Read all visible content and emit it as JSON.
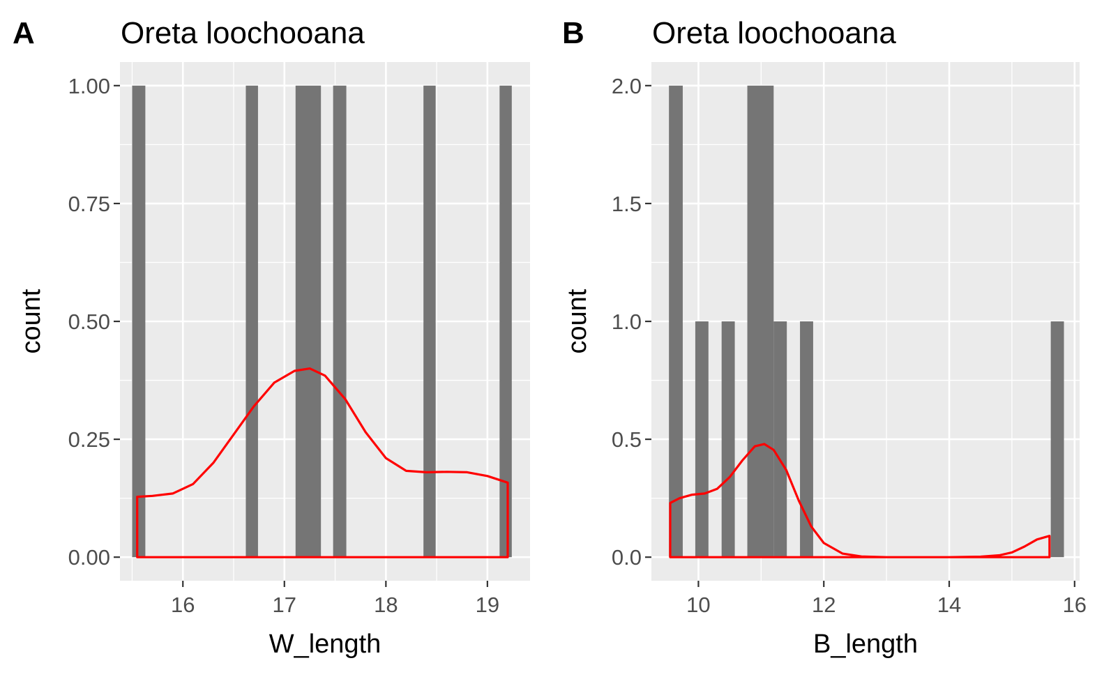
{
  "chart_data": [
    {
      "tag": "A",
      "type": "bar",
      "subtype": "histogram-with-density",
      "title": "Oreta loochooana",
      "xlabel": "W_length",
      "ylabel": "count",
      "xlim": [
        15.38,
        19.42
      ],
      "ylim": [
        -0.05,
        1.05
      ],
      "x_ticks": [
        16,
        17,
        18,
        19
      ],
      "x_tick_labels": [
        "16",
        "17",
        "18",
        "19"
      ],
      "y_ticks": [
        0,
        0.25,
        0.5,
        0.75,
        1.0
      ],
      "y_tick_labels": [
        "0.00",
        "0.25",
        "0.50",
        "0.75",
        "1.00"
      ],
      "bars": [
        {
          "x0": 15.5,
          "x1": 15.63,
          "count": 1
        },
        {
          "x0": 16.62,
          "x1": 16.74,
          "count": 1
        },
        {
          "x0": 17.11,
          "x1": 17.36,
          "count": 1
        },
        {
          "x0": 17.48,
          "x1": 17.61,
          "count": 1
        },
        {
          "x0": 18.37,
          "x1": 18.49,
          "count": 1
        },
        {
          "x0": 19.12,
          "x1": 19.24,
          "count": 1
        }
      ],
      "density": {
        "color": "#ff0000",
        "x": [
          15.55,
          15.7,
          15.9,
          16.1,
          16.3,
          16.5,
          16.7,
          16.9,
          17.1,
          17.25,
          17.4,
          17.6,
          17.8,
          18.0,
          18.2,
          18.4,
          18.6,
          18.8,
          19.0,
          19.2
        ],
        "y": [
          0.128,
          0.13,
          0.135,
          0.155,
          0.2,
          0.26,
          0.32,
          0.37,
          0.395,
          0.4,
          0.385,
          0.335,
          0.265,
          0.21,
          0.183,
          0.18,
          0.181,
          0.18,
          0.172,
          0.158
        ]
      },
      "bar_color": "#757575",
      "panel_background": "#ebebeb",
      "grid": true,
      "legend": "none"
    },
    {
      "tag": "B",
      "type": "bar",
      "subtype": "histogram-with-density",
      "title": "Oreta loochooana",
      "xlabel": "B_length",
      "ylabel": "count",
      "xlim": [
        9.25,
        16.08
      ],
      "ylim": [
        -0.1,
        2.1
      ],
      "x_ticks": [
        10,
        12,
        14,
        16
      ],
      "x_tick_labels": [
        "10",
        "12",
        "14",
        "16"
      ],
      "y_ticks": [
        0,
        0.5,
        1.0,
        1.5,
        2.0
      ],
      "y_tick_labels": [
        "0.0",
        "0.5",
        "1.0",
        "1.5",
        "2.0"
      ],
      "bars": [
        {
          "x0": 9.53,
          "x1": 9.75,
          "count": 2
        },
        {
          "x0": 9.95,
          "x1": 10.16,
          "count": 1
        },
        {
          "x0": 10.37,
          "x1": 10.58,
          "count": 1
        },
        {
          "x0": 10.78,
          "x1": 11.2,
          "count": 2
        },
        {
          "x0": 11.2,
          "x1": 11.41,
          "count": 1
        },
        {
          "x0": 11.62,
          "x1": 11.83,
          "count": 1
        },
        {
          "x0": 15.62,
          "x1": 15.83,
          "count": 1
        }
      ],
      "density": {
        "color": "#ff0000",
        "x": [
          9.55,
          9.7,
          9.9,
          10.1,
          10.3,
          10.5,
          10.7,
          10.9,
          11.05,
          11.2,
          11.4,
          11.6,
          11.8,
          12.0,
          12.3,
          12.6,
          13.0,
          13.5,
          14.0,
          14.5,
          14.8,
          15.0,
          15.2,
          15.4,
          15.6
        ],
        "y": [
          0.23,
          0.25,
          0.265,
          0.27,
          0.29,
          0.34,
          0.41,
          0.47,
          0.48,
          0.455,
          0.37,
          0.24,
          0.13,
          0.06,
          0.015,
          0.003,
          0.0,
          0.0,
          0.0,
          0.002,
          0.008,
          0.02,
          0.045,
          0.075,
          0.09
        ]
      },
      "bar_color": "#757575",
      "panel_background": "#ebebeb",
      "grid": true,
      "legend": "none"
    }
  ]
}
